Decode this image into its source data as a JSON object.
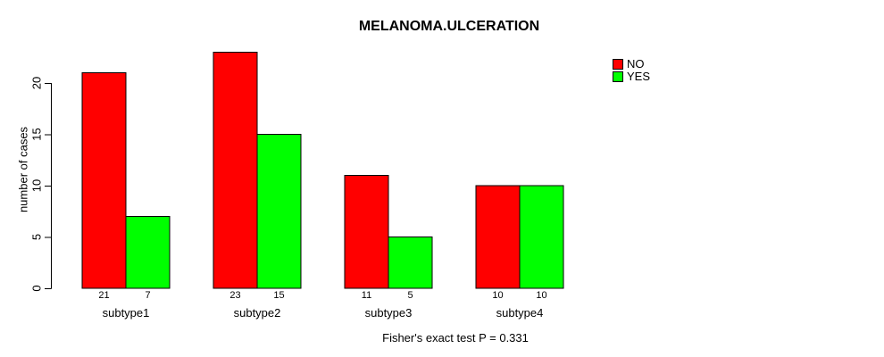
{
  "figure": {
    "title": "MELANOMA.ULCERATION",
    "ylabel": "number of cases",
    "footer": "Fisher's exact test P = 0.331"
  },
  "legend": {
    "position": "top-right",
    "items": [
      {
        "label": "NO",
        "color": "#ff0000"
      },
      {
        "label": "YES",
        "color": "#00ff00"
      }
    ]
  },
  "chart_data": {
    "type": "bar",
    "title": "MELANOMA.ULCERATION",
    "xlabel": "",
    "ylabel": "number of cases",
    "categories": [
      "subtype1",
      "subtype2",
      "subtype3",
      "subtype4"
    ],
    "series": [
      {
        "name": "NO",
        "color": "#ff0000",
        "values": [
          21,
          23,
          11,
          10
        ]
      },
      {
        "name": "YES",
        "color": "#00ff00",
        "values": [
          7,
          15,
          5,
          10
        ]
      }
    ],
    "bar_value_labels": [
      [
        "21",
        "7"
      ],
      [
        "23",
        "15"
      ],
      [
        "11",
        "5"
      ],
      [
        "10",
        "10"
      ]
    ],
    "yticks": [
      0,
      5,
      10,
      15,
      20
    ],
    "ylim": [
      0,
      23
    ],
    "grid": false,
    "legend_position": "top-right",
    "bar_border_color": "#000000",
    "annotation": "Fisher's exact test P = 0.331"
  }
}
